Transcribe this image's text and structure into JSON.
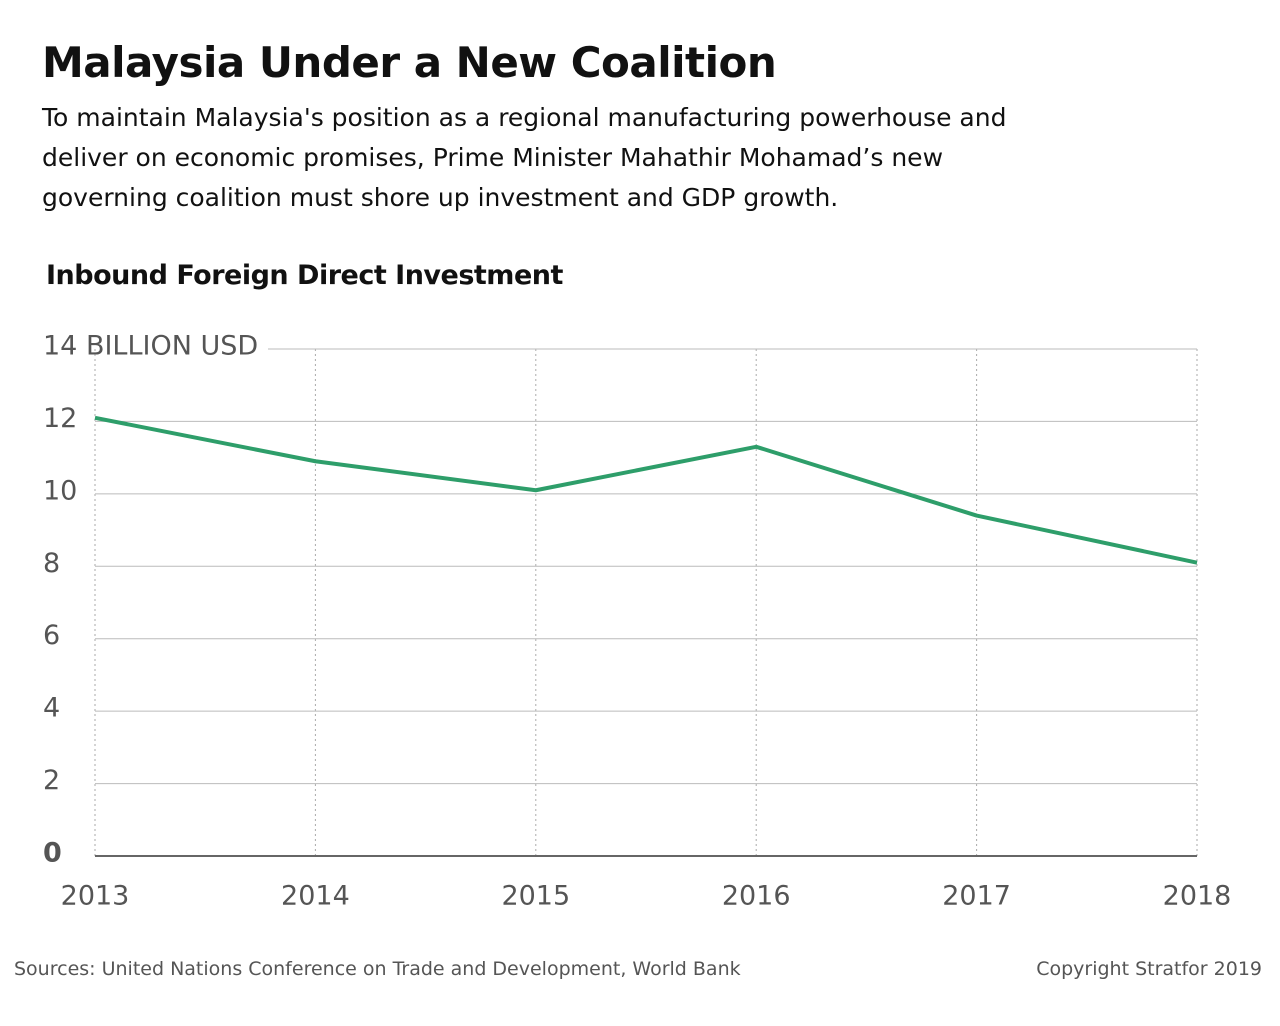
{
  "chart_data": {
    "type": "line",
    "title": "Malaysia Under a New Coalition",
    "subtitle": "To maintain Malaysia's position as a regional manufacturing powerhouse and deliver on economic promises, Prime Minister Mahathir Mohamad’s new governing coalition must shore up investment and GDP growth.",
    "chart_title": "Inbound Foreign Direct Investment",
    "x": [
      2013,
      2014,
      2015,
      2016,
      2017,
      2018
    ],
    "series": [
      {
        "name": "Inbound FDI",
        "color": "#2e9e6a",
        "values": [
          12.1,
          10.9,
          10.1,
          11.3,
          9.4,
          8.1
        ]
      }
    ],
    "xlim": [
      2013,
      2018
    ],
    "xticks": [
      2013,
      2014,
      2015,
      2016,
      2017,
      2018
    ],
    "ylim": [
      0,
      14
    ],
    "yticks": [
      0,
      2,
      4,
      6,
      8,
      10,
      12,
      {
        "value": 14,
        "label": "14 BILLION USD"
      }
    ],
    "grid": true,
    "source": "Sources: United Nations Conference on Trade and Development, World Bank",
    "copyright": "Copyright Stratfor 2019"
  }
}
